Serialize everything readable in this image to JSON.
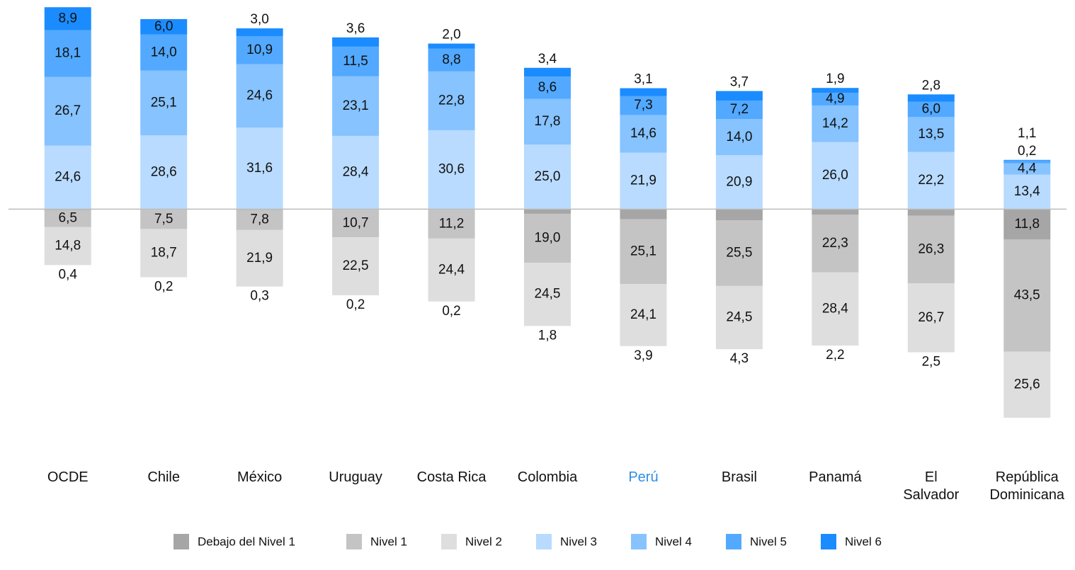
{
  "chart_data": {
    "type": "diverging_stacked_bar",
    "categories": [
      "OCDE",
      "Chile",
      "México",
      "Uruguay",
      "Costa Rica",
      "Colombia",
      "Perú",
      "Brasil",
      "Panamá",
      "El\nSalvador",
      "República\nDominicana"
    ],
    "category_label_colors": [
      "#111111",
      "#111111",
      "#111111",
      "#111111",
      "#111111",
      "#111111",
      "#2e8fe0",
      "#111111",
      "#111111",
      "#111111",
      "#111111"
    ],
    "ylim": [
      -82,
      80
    ],
    "series": [
      {
        "name": "Debajo del Nivel 1",
        "color": "#a6a6a6",
        "values": [
          -0.4,
          -0.2,
          -0.3,
          -0.2,
          -0.2,
          -1.8,
          -3.9,
          -4.3,
          -2.2,
          -2.5,
          -11.8
        ],
        "value_labels": [
          "0,4",
          "0,2",
          "0,3",
          "0,2",
          "0,2",
          "1,8",
          "3,9",
          "4,3",
          "2,2",
          "2,5",
          "11,8"
        ]
      },
      {
        "name": "Nivel 1",
        "color": "#c4c4c4",
        "values": [
          -6.5,
          -7.5,
          -7.8,
          -10.7,
          -11.2,
          -19.0,
          -25.1,
          -25.5,
          -22.3,
          -26.3,
          -43.5
        ],
        "value_labels": [
          "6,5",
          "7,5",
          "7,8",
          "10,7",
          "11,2",
          "19,0",
          "25,1",
          "25,5",
          "22,3",
          "26,3",
          "43,5"
        ]
      },
      {
        "name": "Nivel 2",
        "color": "#dedede",
        "values": [
          -14.8,
          -18.7,
          -21.9,
          -22.5,
          -24.4,
          -24.5,
          -24.1,
          -24.5,
          -28.4,
          -26.7,
          -25.6
        ],
        "value_labels": [
          "14,8",
          "18,7",
          "21,9",
          "22,5",
          "24,4",
          "24,5",
          "24,1",
          "24,5",
          "28,4",
          "26,7",
          "25,6"
        ]
      },
      {
        "name": "Nivel 3",
        "color": "#b8dbff",
        "values": [
          24.6,
          28.6,
          31.6,
          28.4,
          30.6,
          25.0,
          21.9,
          20.9,
          26.0,
          22.2,
          13.4
        ],
        "value_labels": [
          "24,6",
          "28,6",
          "31,6",
          "28,4",
          "30,6",
          "25,0",
          "21,9",
          "20,9",
          "26,0",
          "22,2",
          "13,4"
        ]
      },
      {
        "name": "Nivel 4",
        "color": "#86c3ff",
        "values": [
          26.7,
          25.1,
          24.6,
          23.1,
          22.8,
          17.8,
          14.6,
          14.0,
          14.2,
          13.5,
          4.4
        ],
        "value_labels": [
          "26,7",
          "25,1",
          "24,6",
          "23,1",
          "22,8",
          "17,8",
          "14,6",
          "14,0",
          "14,2",
          "13,5",
          "4,4"
        ]
      },
      {
        "name": "Nivel 5",
        "color": "#52a9ff",
        "values": [
          18.1,
          14.0,
          10.9,
          11.5,
          8.8,
          8.6,
          7.3,
          7.2,
          4.9,
          6.0,
          1.1
        ],
        "value_labels": [
          "18,1",
          "14,0",
          "10,9",
          "11,5",
          "8,8",
          "8,6",
          "7,3",
          "7,2",
          "4,9",
          "6,0",
          "1,1"
        ]
      },
      {
        "name": "Nivel 6",
        "color": "#1b8cff",
        "values": [
          8.9,
          6.0,
          3.0,
          3.6,
          2.0,
          3.4,
          3.1,
          3.7,
          1.9,
          2.8,
          0.2
        ],
        "value_labels": [
          "8,9",
          "6,0",
          "3,0",
          "3,6",
          "2,0",
          "3,4",
          "3,1",
          "3,7",
          "1,9",
          "2,8",
          "0,2"
        ]
      }
    ]
  }
}
